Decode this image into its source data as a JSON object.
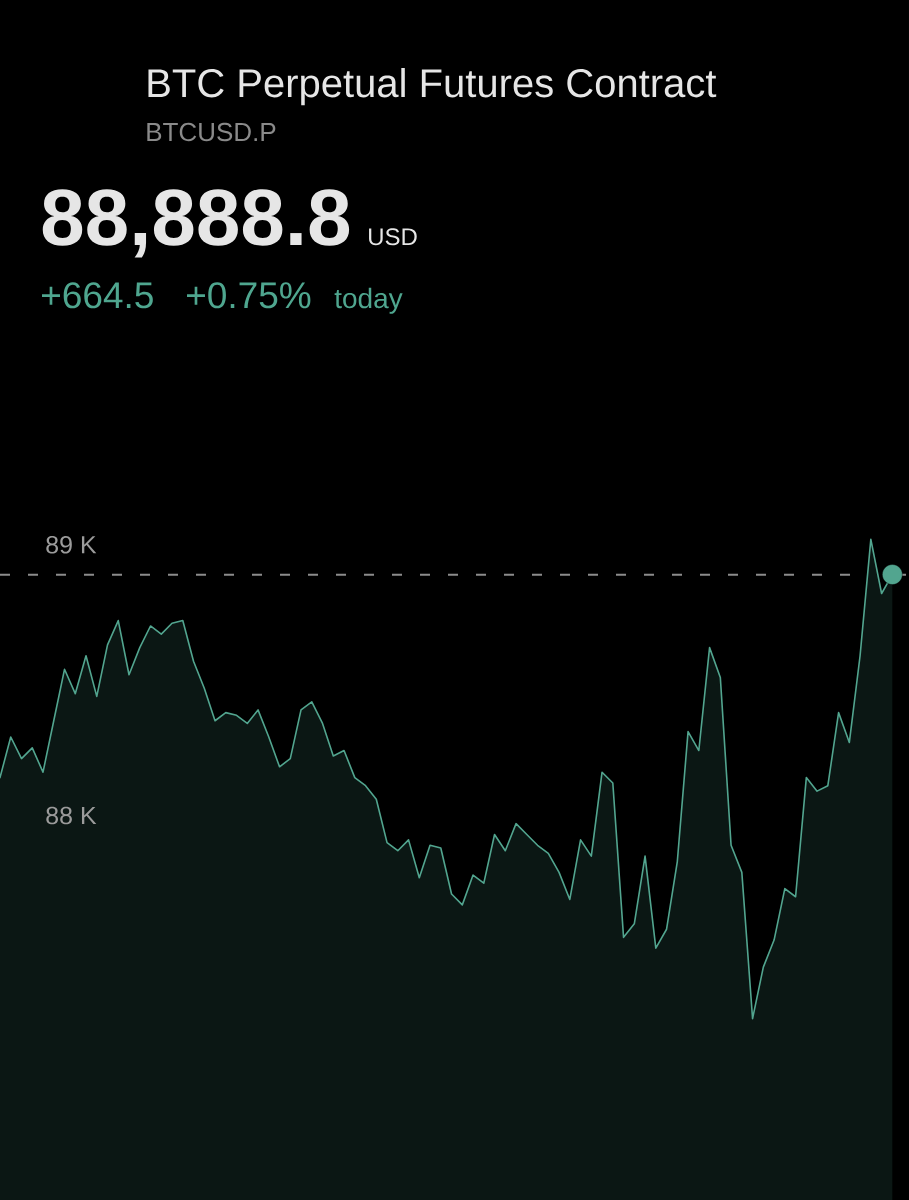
{
  "chart_data": {
    "type": "area",
    "title": "BTC Perpetual Futures Contract",
    "subtitle": "BTCUSD.P",
    "annotations": [
      "88,888.8",
      "USD",
      "+664.5",
      "+0.75%",
      "today"
    ],
    "categories": [
      null,
      null,
      null,
      null,
      null,
      null,
      null,
      null,
      null,
      null,
      null,
      null,
      null,
      null,
      null,
      null,
      null,
      null,
      null,
      null,
      null,
      null,
      null,
      null,
      null,
      null,
      null,
      null,
      null,
      null,
      null,
      null,
      null,
      null,
      null,
      null,
      null,
      null,
      null,
      null,
      null,
      null,
      null,
      null,
      null,
      null,
      null,
      null,
      null,
      null,
      null,
      null,
      null,
      null,
      null,
      null,
      null,
      null,
      null,
      null,
      null,
      null,
      null,
      null,
      null,
      null,
      null,
      null,
      null,
      null,
      null,
      null,
      null,
      null,
      null,
      null,
      null,
      null,
      null,
      null,
      null,
      null,
      null,
      null
    ],
    "series": [
      {
        "color": "#52a58f",
        "values": [
          88140,
          88290,
          88210,
          88250,
          88160,
          88350,
          88540,
          88450,
          88590,
          88440,
          88630,
          88720,
          88520,
          88620,
          88700,
          88670,
          88710,
          88720,
          88570,
          88470,
          88350,
          88380,
          88370,
          88340,
          88390,
          88290,
          88180,
          88210,
          88390,
          88420,
          88340,
          88220,
          88240,
          88140,
          88110,
          88060,
          87900,
          87870,
          87910,
          87770,
          87890,
          87880,
          87710,
          87670,
          87780,
          87750,
          87930,
          87870,
          87970,
          87930,
          87890,
          87860,
          87790,
          87690,
          87910,
          87850,
          88160,
          88120,
          87550,
          87600,
          87850,
          87510,
          87580,
          87830,
          88310,
          88240,
          88620,
          88510,
          87890,
          87790,
          87250,
          87440,
          87540,
          87730,
          87700,
          88140,
          88090,
          88110,
          88380,
          88270,
          88590,
          89020,
          88820,
          88890
        ]
      },
      {
        "type": "scatter",
        "color": "#52a58f",
        "marker": "circle",
        "values": [
          null,
          null,
          null,
          null,
          null,
          null,
          null,
          null,
          null,
          null,
          null,
          null,
          null,
          null,
          null,
          null,
          null,
          null,
          null,
          null,
          null,
          null,
          null,
          null,
          null,
          null,
          null,
          null,
          null,
          null,
          null,
          null,
          null,
          null,
          null,
          null,
          null,
          null,
          null,
          null,
          null,
          null,
          null,
          null,
          null,
          null,
          null,
          null,
          null,
          null,
          null,
          null,
          null,
          null,
          null,
          null,
          null,
          null,
          null,
          null,
          null,
          null,
          null,
          null,
          null,
          null,
          null,
          null,
          null,
          null,
          null,
          null,
          null,
          null,
          null,
          null,
          null,
          null,
          null,
          null,
          null,
          null,
          null,
          88890
        ]
      }
    ],
    "ylim": [
      86580,
      89350
    ],
    "yticks": [
      {
        "value": 89000,
        "label": "89 K"
      },
      {
        "value": 88000,
        "label": "88 K"
      }
    ],
    "ref_lines": [
      {
        "axis": "y",
        "value": 88888.8,
        "color": "#8c8c8c",
        "line_style": "dashed"
      }
    ],
    "tick_labels": "y",
    "legend": false,
    "grid": false
  }
}
